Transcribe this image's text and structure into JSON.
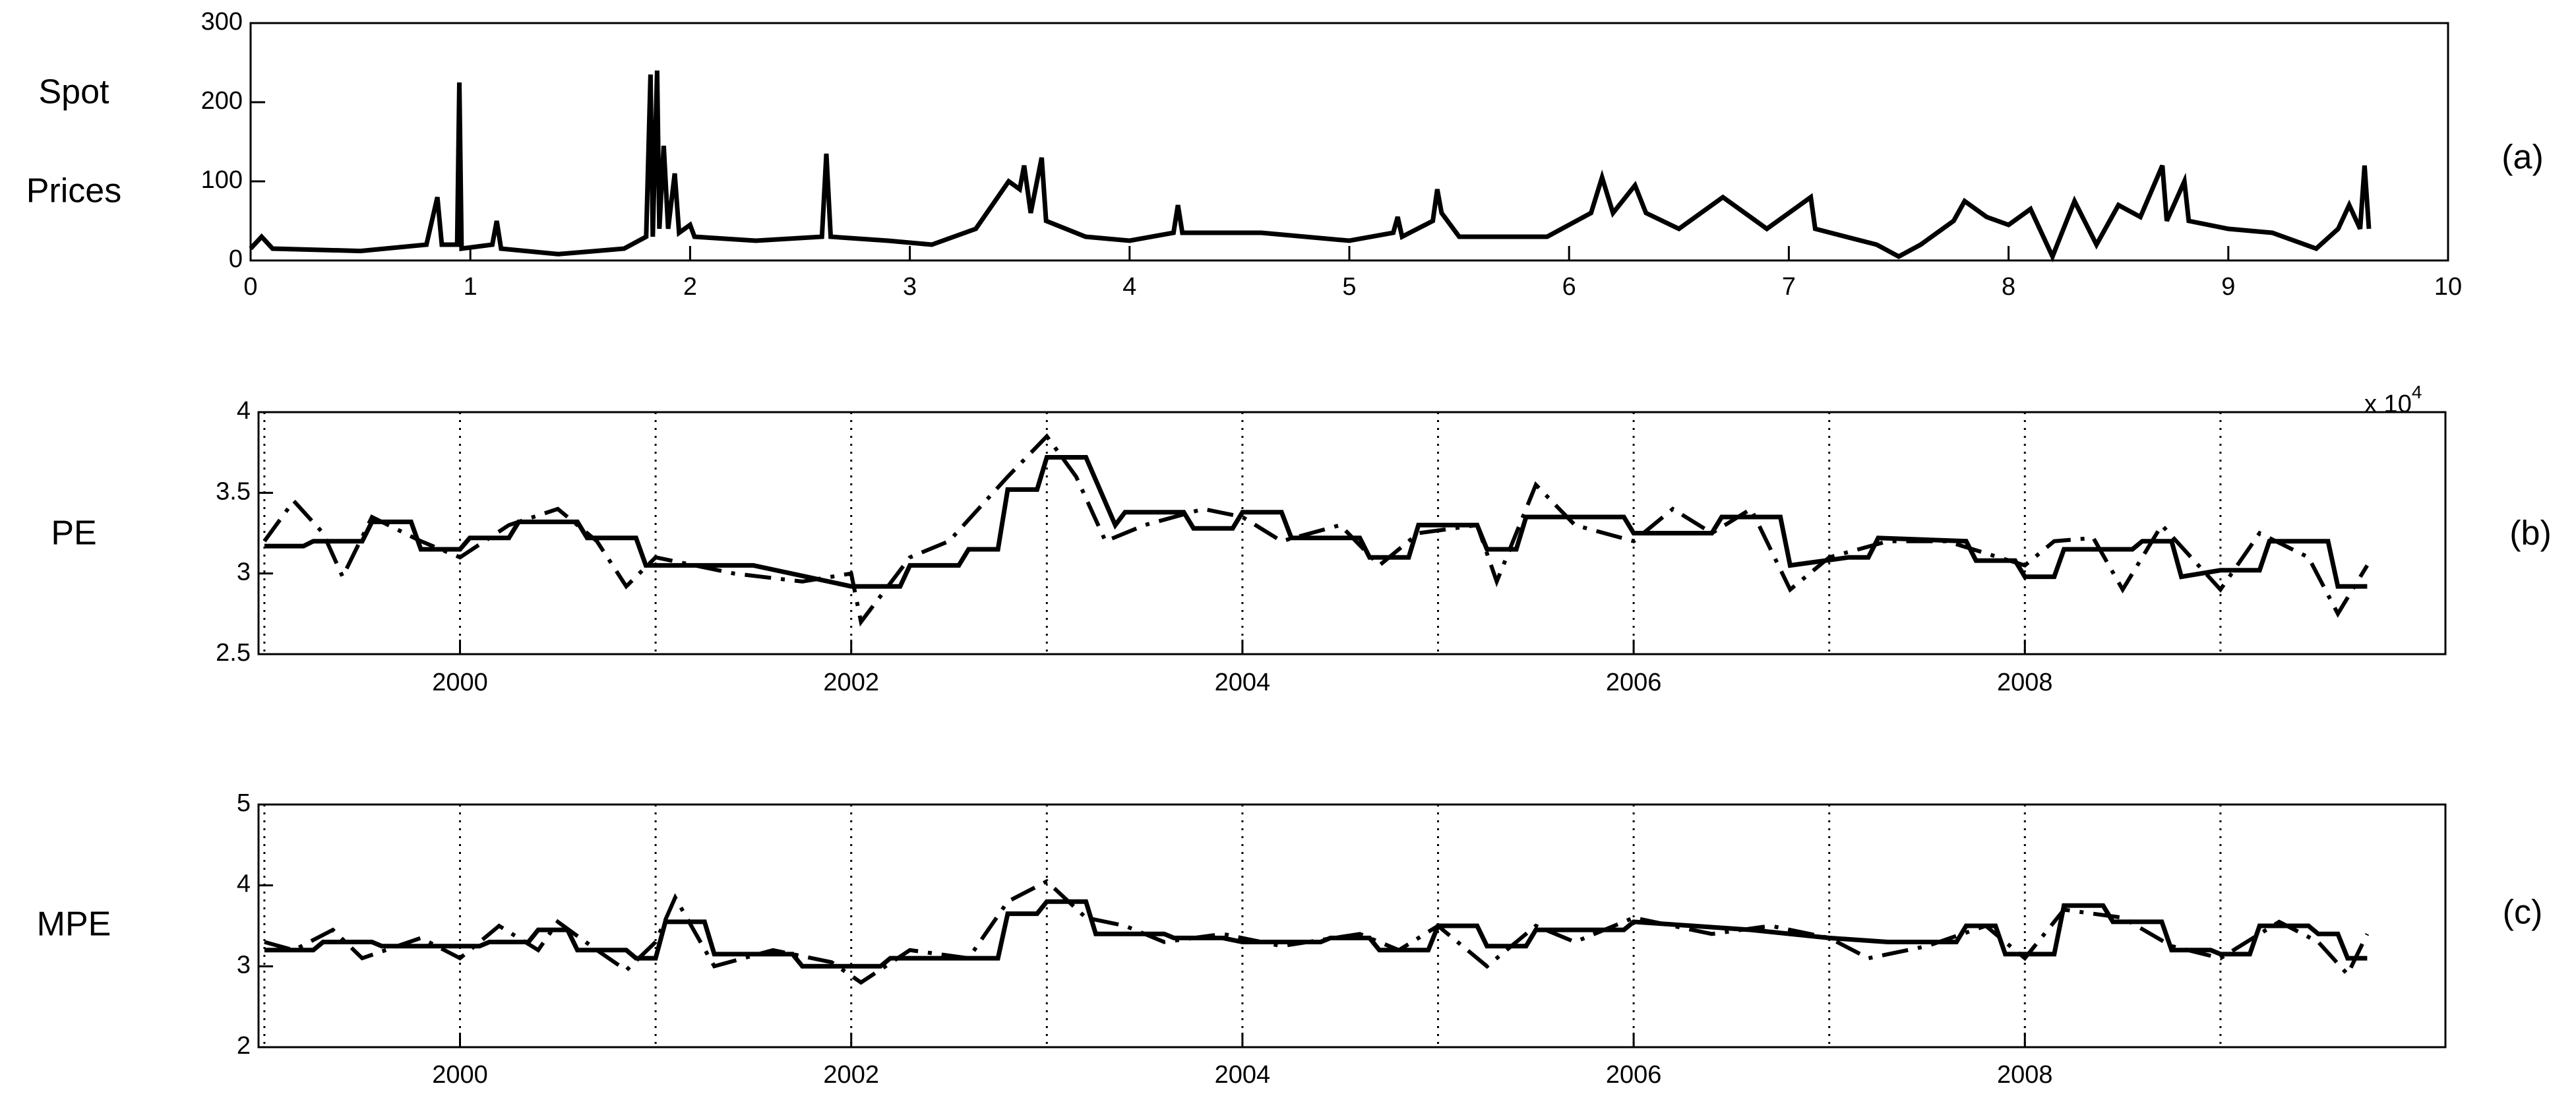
{
  "chart_data": [
    {
      "type": "line",
      "ylabel": [
        "Spot",
        "Prices"
      ],
      "panel_label": "(a)",
      "x_multiplier": {
        "base": "x 10",
        "exponent": "4"
      },
      "xlim": [
        0,
        10
      ],
      "xticks": [
        0,
        1,
        2,
        3,
        4,
        5,
        6,
        7,
        8,
        9,
        10
      ],
      "ylim": [
        0,
        300
      ],
      "yticks": [
        0,
        100,
        200,
        300
      ],
      "series": [
        {
          "color": "#000000",
          "style": "solid",
          "x": [
            0,
            0.05,
            0.1,
            0.5,
            0.8,
            0.85,
            0.87,
            0.94,
            0.95,
            0.96,
            1.1,
            1.12,
            1.14,
            1.4,
            1.7,
            1.8,
            1.82,
            1.83,
            1.85,
            1.86,
            1.88,
            1.9,
            1.93,
            1.95,
            2.0,
            2.02,
            2.3,
            2.6,
            2.62,
            2.64,
            2.9,
            3.1,
            3.3,
            3.4,
            3.45,
            3.5,
            3.52,
            3.55,
            3.6,
            3.62,
            3.8,
            4.0,
            4.2,
            4.22,
            4.24,
            4.6,
            5.0,
            5.2,
            5.22,
            5.24,
            5.38,
            5.4,
            5.42,
            5.5,
            5.9,
            6.1,
            6.15,
            6.2,
            6.3,
            6.35,
            6.5,
            6.7,
            6.8,
            6.9,
            7.1,
            7.12,
            7.4,
            7.5,
            7.6,
            7.75,
            7.8,
            7.9,
            8.0,
            8.1,
            8.2,
            8.3,
            8.4,
            8.5,
            8.6,
            8.7,
            8.72,
            8.8,
            8.82,
            9.0,
            9.2,
            9.4,
            9.5,
            9.55,
            9.6,
            9.62,
            9.64
          ],
          "values": [
            15,
            30,
            15,
            12,
            20,
            80,
            20,
            20,
            225,
            15,
            20,
            50,
            15,
            8,
            15,
            30,
            235,
            30,
            240,
            40,
            145,
            40,
            110,
            35,
            45,
            30,
            25,
            30,
            135,
            30,
            25,
            20,
            40,
            80,
            100,
            90,
            120,
            60,
            130,
            50,
            30,
            25,
            35,
            70,
            35,
            35,
            25,
            35,
            55,
            30,
            50,
            90,
            60,
            30,
            30,
            60,
            105,
            60,
            95,
            60,
            40,
            80,
            60,
            40,
            80,
            40,
            20,
            5,
            20,
            50,
            75,
            55,
            45,
            65,
            5,
            75,
            20,
            70,
            55,
            120,
            50,
            100,
            50,
            40,
            35,
            15,
            40,
            70,
            40,
            120,
            40
          ]
        }
      ]
    },
    {
      "type": "line",
      "ylabel": [
        "PE"
      ],
      "panel_label": "(b)",
      "xlim": [
        1998.97,
        2010.15
      ],
      "xticks": [
        2000,
        2002,
        2004,
        2006,
        2008
      ],
      "xgrid": [
        1999,
        2000,
        2001,
        2002,
        2003,
        2004,
        2005,
        2006,
        2007,
        2008,
        2009
      ],
      "ylim": [
        2.5,
        4
      ],
      "yticks": [
        2.5,
        3,
        3.5,
        4
      ],
      "series": [
        {
          "color": "#000000",
          "style": "solid",
          "x": [
            1999.0,
            1999.2,
            1999.25,
            1999.5,
            1999.55,
            1999.75,
            1999.8,
            2000.0,
            2000.05,
            2000.25,
            2000.3,
            2000.6,
            2000.65,
            2000.9,
            2000.95,
            2001.5,
            2002.0,
            2002.25,
            2002.3,
            2002.55,
            2002.6,
            2002.75,
            2002.8,
            2002.95,
            2003.0,
            2003.2,
            2003.35,
            2003.4,
            2003.7,
            2003.75,
            2003.95,
            2004.0,
            2004.2,
            2004.25,
            2004.6,
            2004.65,
            2004.85,
            2004.9,
            2005.2,
            2005.25,
            2005.4,
            2005.45,
            2005.95,
            2006.0,
            2006.4,
            2006.45,
            2006.75,
            2006.8,
            2007.1,
            2007.2,
            2007.25,
            2007.7,
            2007.75,
            2007.95,
            2008.0,
            2008.15,
            2008.2,
            2008.55,
            2008.6,
            2008.75,
            2008.8,
            2009.0,
            2009.2,
            2009.25,
            2009.55,
            2009.6,
            2009.75
          ],
          "values": [
            3.17,
            3.17,
            3.2,
            3.2,
            3.32,
            3.32,
            3.15,
            3.15,
            3.22,
            3.22,
            3.32,
            3.32,
            3.22,
            3.22,
            3.05,
            3.05,
            2.92,
            2.92,
            3.05,
            3.05,
            3.15,
            3.15,
            3.52,
            3.52,
            3.72,
            3.72,
            3.3,
            3.38,
            3.38,
            3.28,
            3.28,
            3.38,
            3.38,
            3.22,
            3.22,
            3.1,
            3.1,
            3.3,
            3.3,
            3.15,
            3.15,
            3.35,
            3.35,
            3.25,
            3.25,
            3.35,
            3.35,
            3.05,
            3.1,
            3.1,
            3.22,
            3.2,
            3.08,
            3.08,
            2.98,
            2.98,
            3.15,
            3.15,
            3.2,
            3.2,
            2.98,
            3.02,
            3.02,
            3.2,
            3.2,
            2.92,
            2.92
          ]
        },
        {
          "color": "#000000",
          "style": "dashdot",
          "x": [
            1999.0,
            1999.15,
            1999.3,
            1999.4,
            1999.55,
            1999.8,
            2000,
            2000.25,
            2000.5,
            2000.7,
            2000.85,
            2001.0,
            2001.4,
            2001.75,
            2002.0,
            2002.05,
            2002.3,
            2002.5,
            2002.8,
            2003.0,
            2003.15,
            2003.3,
            2003.5,
            2003.8,
            2004.0,
            2004.2,
            2004.5,
            2004.7,
            2004.9,
            2005.2,
            2005.3,
            2005.5,
            2005.7,
            2006,
            2006.2,
            2006.4,
            2006.6,
            2006.8,
            2007,
            2007.3,
            2007.6,
            2008.0,
            2008.15,
            2008.35,
            2008.5,
            2008.7,
            2009.0,
            2009.2,
            2009.45,
            2009.6,
            2009.75
          ],
          "values": [
            3.2,
            3.45,
            3.25,
            2.98,
            3.35,
            3.2,
            3.1,
            3.3,
            3.4,
            3.2,
            2.92,
            3.1,
            3.0,
            2.95,
            3.0,
            2.7,
            3.1,
            3.2,
            3.6,
            3.85,
            3.6,
            3.2,
            3.3,
            3.4,
            3.35,
            3.2,
            3.3,
            3.05,
            3.25,
            3.3,
            2.95,
            3.55,
            3.3,
            3.2,
            3.4,
            3.25,
            3.4,
            2.9,
            3.1,
            3.2,
            3.2,
            3.05,
            3.2,
            3.22,
            2.9,
            3.3,
            2.9,
            3.25,
            3.1,
            2.75,
            3.05
          ]
        }
      ]
    },
    {
      "type": "line",
      "ylabel": [
        "MPE"
      ],
      "panel_label": "(c)",
      "xlim": [
        1998.97,
        2010.15
      ],
      "xticks": [
        2000,
        2002,
        2004,
        2006,
        2008
      ],
      "xgrid": [
        1999,
        2000,
        2001,
        2002,
        2003,
        2004,
        2005,
        2006,
        2007,
        2008,
        2009
      ],
      "ylim": [
        2,
        5
      ],
      "yticks": [
        2,
        3,
        4,
        5
      ],
      "series": [
        {
          "color": "#000000",
          "style": "solid",
          "x": [
            1999.0,
            1999.25,
            1999.3,
            1999.55,
            1999.6,
            2000.1,
            2000.15,
            2000.35,
            2000.4,
            2000.55,
            2000.6,
            2000.85,
            2000.9,
            2001.0,
            2001.05,
            2001.25,
            2001.3,
            2001.7,
            2001.75,
            2002.15,
            2002.2,
            2002.75,
            2002.8,
            2002.95,
            2003.0,
            2003.2,
            2003.25,
            2003.6,
            2003.65,
            2003.9,
            2004.0,
            2004.4,
            2004.45,
            2004.65,
            2004.7,
            2004.95,
            2005.0,
            2005.2,
            2005.25,
            2005.45,
            2005.5,
            2005.95,
            2006.0,
            2006.3,
            2006.6,
            2007.0,
            2007.3,
            2007.65,
            2007.7,
            2007.85,
            2007.9,
            2008.15,
            2008.2,
            2008.4,
            2008.45,
            2008.7,
            2008.75,
            2008.95,
            2009.0,
            2009.15,
            2009.2,
            2009.45,
            2009.5,
            2009.6,
            2009.65,
            2009.75
          ],
          "values": [
            3.2,
            3.2,
            3.3,
            3.3,
            3.25,
            3.25,
            3.3,
            3.3,
            3.45,
            3.45,
            3.2,
            3.2,
            3.1,
            3.1,
            3.55,
            3.55,
            3.15,
            3.15,
            3.0,
            3.0,
            3.1,
            3.1,
            3.65,
            3.65,
            3.8,
            3.8,
            3.4,
            3.4,
            3.35,
            3.35,
            3.3,
            3.3,
            3.35,
            3.35,
            3.2,
            3.2,
            3.5,
            3.5,
            3.25,
            3.25,
            3.45,
            3.45,
            3.55,
            3.5,
            3.45,
            3.35,
            3.3,
            3.3,
            3.5,
            3.5,
            3.15,
            3.15,
            3.75,
            3.75,
            3.55,
            3.55,
            3.2,
            3.2,
            3.15,
            3.15,
            3.5,
            3.5,
            3.4,
            3.4,
            3.1,
            3.1
          ]
        },
        {
          "color": "#000000",
          "style": "dashdot",
          "x": [
            1999.0,
            1999.15,
            1999.35,
            1999.5,
            1999.8,
            2000.0,
            2000.2,
            2000.4,
            2000.5,
            2000.7,
            2000.85,
            2001.0,
            2001.1,
            2001.3,
            2001.6,
            2001.9,
            2002.05,
            2002.3,
            2002.6,
            2002.8,
            2003.0,
            2003.2,
            2003.4,
            2003.6,
            2003.9,
            2004.2,
            2004.6,
            2004.8,
            2005.0,
            2005.25,
            2005.5,
            2005.7,
            2006.0,
            2006.4,
            2006.7,
            2007.0,
            2007.2,
            2007.5,
            2007.8,
            2008.0,
            2008.2,
            2008.5,
            2008.75,
            2009.0,
            2009.3,
            2009.5,
            2009.65,
            2009.75
          ],
          "values": [
            3.3,
            3.2,
            3.45,
            3.1,
            3.35,
            3.1,
            3.5,
            3.2,
            3.55,
            3.2,
            2.95,
            3.3,
            3.85,
            3.0,
            3.2,
            3.05,
            2.8,
            3.2,
            3.1,
            3.8,
            4.05,
            3.6,
            3.5,
            3.3,
            3.4,
            3.25,
            3.4,
            3.2,
            3.5,
            3.0,
            3.5,
            3.3,
            3.6,
            3.4,
            3.5,
            3.35,
            3.1,
            3.25,
            3.5,
            3.1,
            3.7,
            3.6,
            3.25,
            3.1,
            3.55,
            3.3,
            2.9,
            3.4
          ]
        }
      ]
    }
  ]
}
